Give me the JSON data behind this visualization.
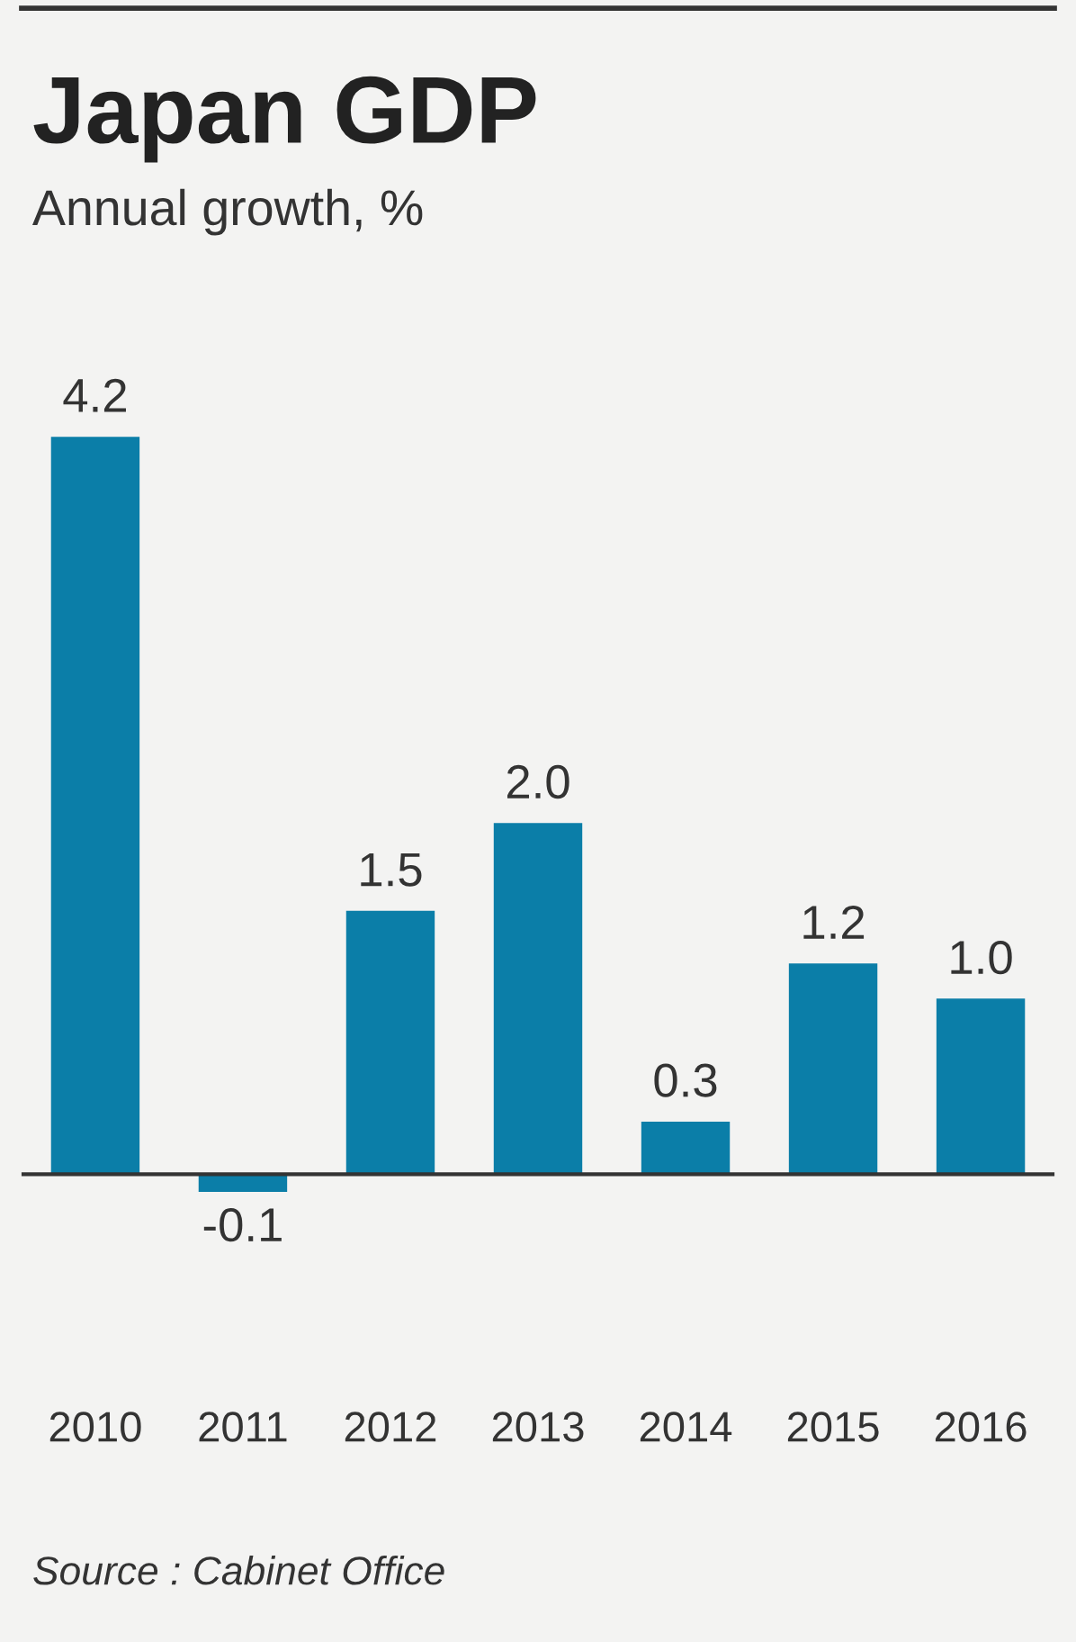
{
  "chart_data": {
    "type": "bar",
    "title": "Japan GDP",
    "subtitle": "Annual growth, %",
    "categories": [
      "2010",
      "2011",
      "2012",
      "2013",
      "2014",
      "2015",
      "2016"
    ],
    "values": [
      4.2,
      -0.1,
      1.5,
      2.0,
      0.3,
      1.2,
      1.0
    ],
    "color": "#0b7ea8",
    "value_labels": [
      "4.2",
      "-0.1",
      "1.5",
      "2.0",
      "0.3",
      "1.2",
      "1.0"
    ],
    "annotations": [
      "Source : Cabinet Office"
    ]
  }
}
